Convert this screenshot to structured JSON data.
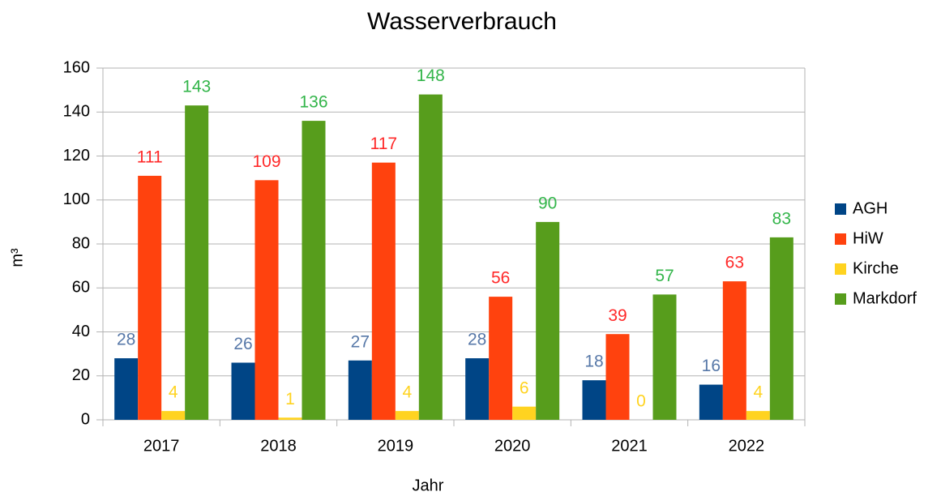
{
  "chart_data": {
    "type": "bar",
    "title": "Wasserverbrauch",
    "x_label": "Jahr",
    "y_label": "m³",
    "categories": [
      "2017",
      "2018",
      "2019",
      "2020",
      "2021",
      "2022"
    ],
    "series": [
      {
        "name": "AGH",
        "color": "#004586",
        "label_color": "#5778a8",
        "values": [
          28,
          26,
          27,
          28,
          18,
          16
        ]
      },
      {
        "name": "HiW",
        "color": "#ff420e",
        "label_color": "#ff2a2a",
        "values": [
          111,
          109,
          117,
          56,
          39,
          63
        ]
      },
      {
        "name": "Kirche",
        "color": "#ffd320",
        "label_color": "#ffd320",
        "values": [
          4,
          1,
          4,
          6,
          0,
          4
        ]
      },
      {
        "name": "Markdorf",
        "color": "#579d1c",
        "label_color": "#33b54a",
        "values": [
          143,
          136,
          148,
          90,
          57,
          83
        ]
      }
    ],
    "ylim": [
      0,
      160
    ],
    "yticks": [
      0,
      20,
      40,
      60,
      80,
      100,
      120,
      140,
      160
    ],
    "grid": true,
    "legend": "right"
  }
}
